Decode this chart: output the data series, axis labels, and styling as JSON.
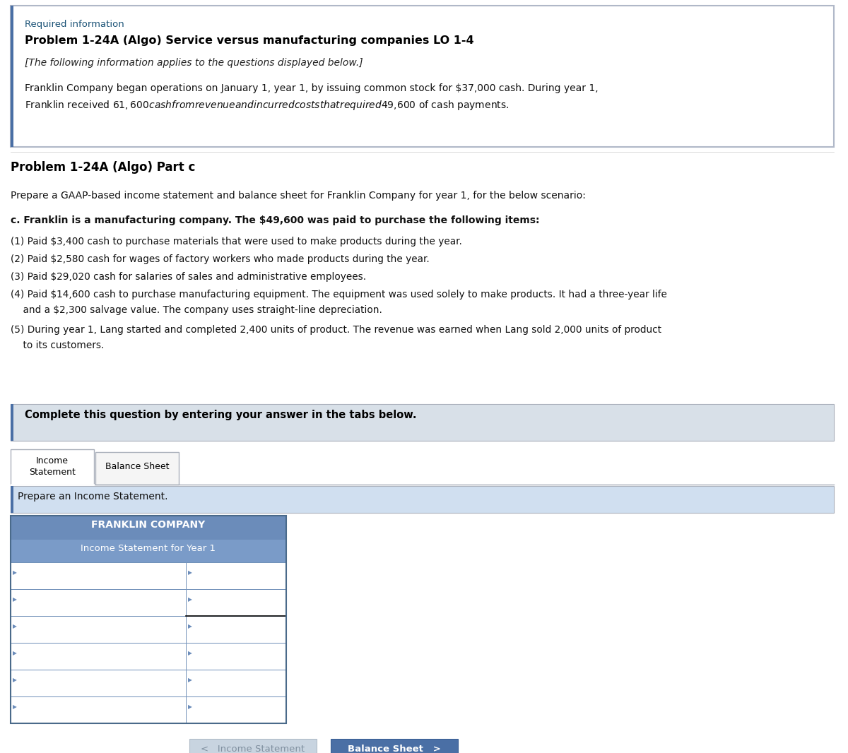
{
  "required_info_label": "Required information",
  "problem_title": "Problem 1-24A (Algo) Service versus manufacturing companies LO 1-4",
  "italic_subtitle": "[The following information applies to the questions displayed below.]",
  "intro_line1": "Franklin Company began operations on January 1, year 1, by issuing common stock for $37,000 cash. During year 1,",
  "intro_line2": "Franklin received $61,600 cash from revenue and incurred costs that required $49,600 of cash payments.",
  "part_title": "Problem 1-24A (Algo) Part c",
  "prepare_text": "Prepare a GAAP-based income statement and balance sheet for Franklin Company for year 1, for the below scenario:",
  "c_text": "c. Franklin is a manufacturing company. The $49,600 was paid to purchase the following items:",
  "item1": "(1) Paid $3,400 cash to purchase materials that were used to make products during the year.",
  "item2": "(2) Paid $2,580 cash for wages of factory workers who made products during the year.",
  "item3": "(3) Paid $29,020 cash for salaries of sales and administrative employees.",
  "item4a": "(4) Paid $14,600 cash to purchase manufacturing equipment. The equipment was used solely to make products. It had a three-year life",
  "item4b": "    and a $2,300 salvage value. The company uses straight-line depreciation.",
  "item5a": "(5) During year 1, Lang started and completed 2,400 units of product. The revenue was earned when Lang sold 2,000 units of product",
  "item5b": "    to its customers.",
  "complete_text": "Complete this question by entering your answer in the tabs below.",
  "tab1_line1": "Income",
  "tab1_line2": "Statement",
  "tab2_label": "Balance Sheet",
  "prepare_income_text": "Prepare an Income Statement.",
  "table_title1": "FRANKLIN COMPANY",
  "table_title2": "Income Statement for Year 1",
  "nav_left_label": "<   Income Statement",
  "nav_right_label": "Balance Sheet   >",
  "bg_color": "#ffffff",
  "top_box_border": "#b0b8c8",
  "table_header_color": "#6b8cba",
  "table_header_color2": "#7a9bc8",
  "row_border_color": "#7090b8",
  "nav_left_bg": "#c8d4e0",
  "nav_left_text": "#8090a0",
  "nav_right_bg": "#4a6fa5",
  "nav_right_text": "#ffffff",
  "required_color": "#1a5276",
  "complete_box_bg": "#d8e0e8",
  "prepare_box_bg": "#d0dff0",
  "left_accent_color": "#4a6fa5",
  "num_table_rows": 6
}
